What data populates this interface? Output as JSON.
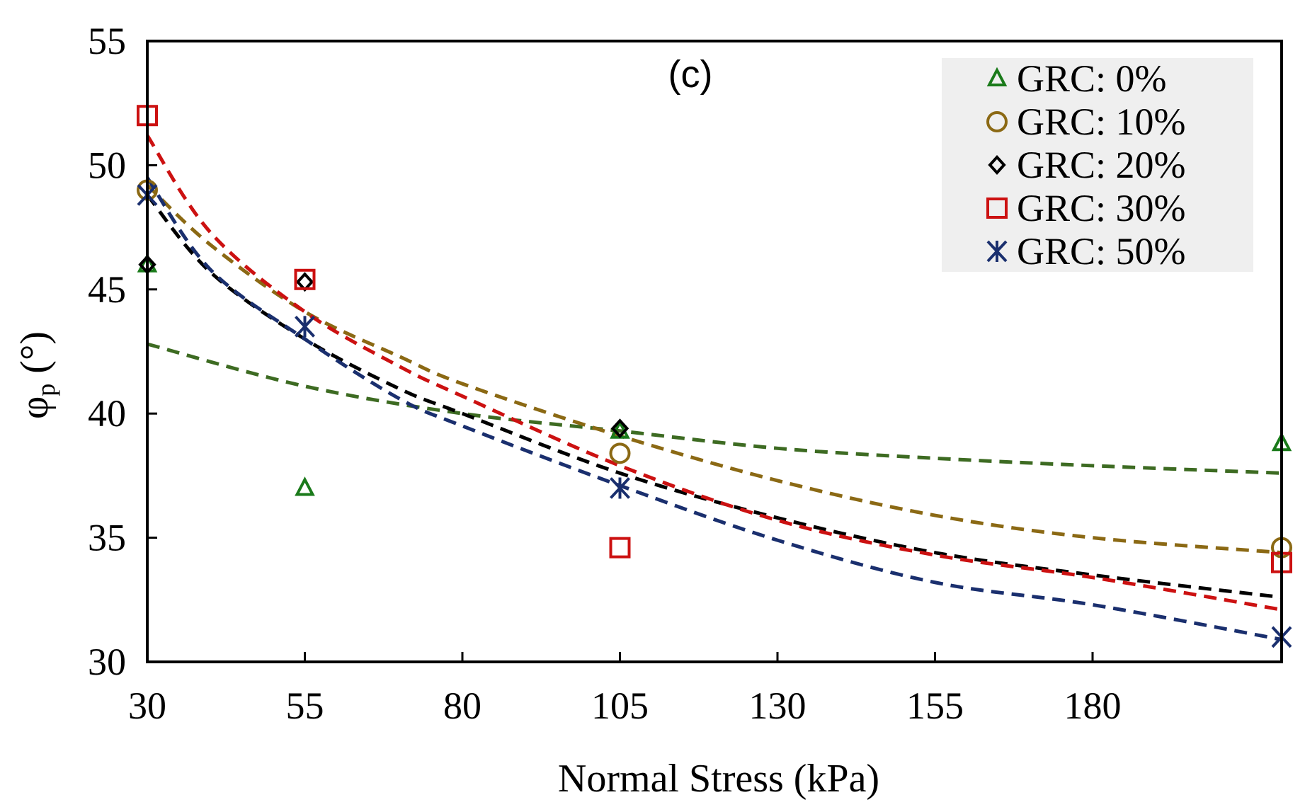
{
  "chart_data": {
    "type": "scatter",
    "panel_label": "(c)",
    "xlabel": "Normal Stress (kPa)",
    "ylabel": {
      "symbol": "φ",
      "subscript": "p",
      "unit": " (°)"
    },
    "xlim": [
      30,
      210
    ],
    "ylim": [
      30,
      55
    ],
    "xticks": [
      30,
      55,
      80,
      105,
      130,
      155,
      180
    ],
    "yticks": [
      30,
      35,
      40,
      45,
      50,
      55
    ],
    "legend_position": "top-right",
    "series": [
      {
        "name": "GRC: 0%",
        "marker": "triangle",
        "color": "#1a7a1a",
        "trend_color": "#3d6b22",
        "x": [
          30,
          55,
          105,
          210
        ],
        "y": [
          46.0,
          37.0,
          39.3,
          38.8
        ],
        "trend": {
          "x": [
            30,
            55,
            80,
            105,
            130,
            155,
            180,
            210
          ],
          "y": [
            42.8,
            41.1,
            40.0,
            39.3,
            38.6,
            38.2,
            37.9,
            37.6
          ]
        }
      },
      {
        "name": "GRC: 10%",
        "marker": "circle",
        "color": "#8b6914",
        "trend_color": "#8b6914",
        "x": [
          30,
          105,
          210
        ],
        "y": [
          49.0,
          38.4,
          34.6
        ],
        "trend": {
          "x": [
            30,
            40,
            55,
            70,
            80,
            105,
            130,
            155,
            180,
            210
          ],
          "y": [
            49.2,
            46.8,
            44.1,
            42.3,
            41.2,
            39.1,
            37.3,
            35.9,
            35.0,
            34.4
          ]
        }
      },
      {
        "name": "GRC: 20%",
        "marker": "diamond",
        "color": "#000000",
        "trend_color": "#000000",
        "x": [
          30,
          55,
          105
        ],
        "y": [
          46.0,
          45.3,
          39.4
        ],
        "trend": {
          "x": [
            30,
            40,
            55,
            70,
            80,
            105,
            130,
            155,
            180,
            210
          ],
          "y": [
            48.8,
            45.7,
            43.0,
            41.0,
            40.0,
            37.6,
            35.8,
            34.4,
            33.5,
            32.6
          ]
        }
      },
      {
        "name": "GRC: 30%",
        "marker": "square",
        "color": "#cc1111",
        "trend_color": "#cc1111",
        "x": [
          30,
          55,
          105,
          210
        ],
        "y": [
          52.0,
          45.4,
          34.6,
          34.0
        ],
        "trend": {
          "x": [
            30,
            40,
            55,
            70,
            80,
            105,
            130,
            155,
            180,
            210
          ],
          "y": [
            51.2,
            47.3,
            44.1,
            41.9,
            40.7,
            37.9,
            35.7,
            34.3,
            33.4,
            32.1
          ]
        }
      },
      {
        "name": "GRC: 50%",
        "marker": "asterisk",
        "color": "#1a2f6e",
        "trend_color": "#1a2f6e",
        "x": [
          30,
          55,
          105,
          210
        ],
        "y": [
          48.8,
          43.5,
          37.0,
          31.0
        ],
        "trend": {
          "x": [
            30,
            40,
            55,
            70,
            80,
            105,
            130,
            155,
            180,
            210
          ],
          "y": [
            49.5,
            45.8,
            43.0,
            40.6,
            39.5,
            37.1,
            34.9,
            33.2,
            32.3,
            30.9
          ]
        }
      }
    ]
  }
}
